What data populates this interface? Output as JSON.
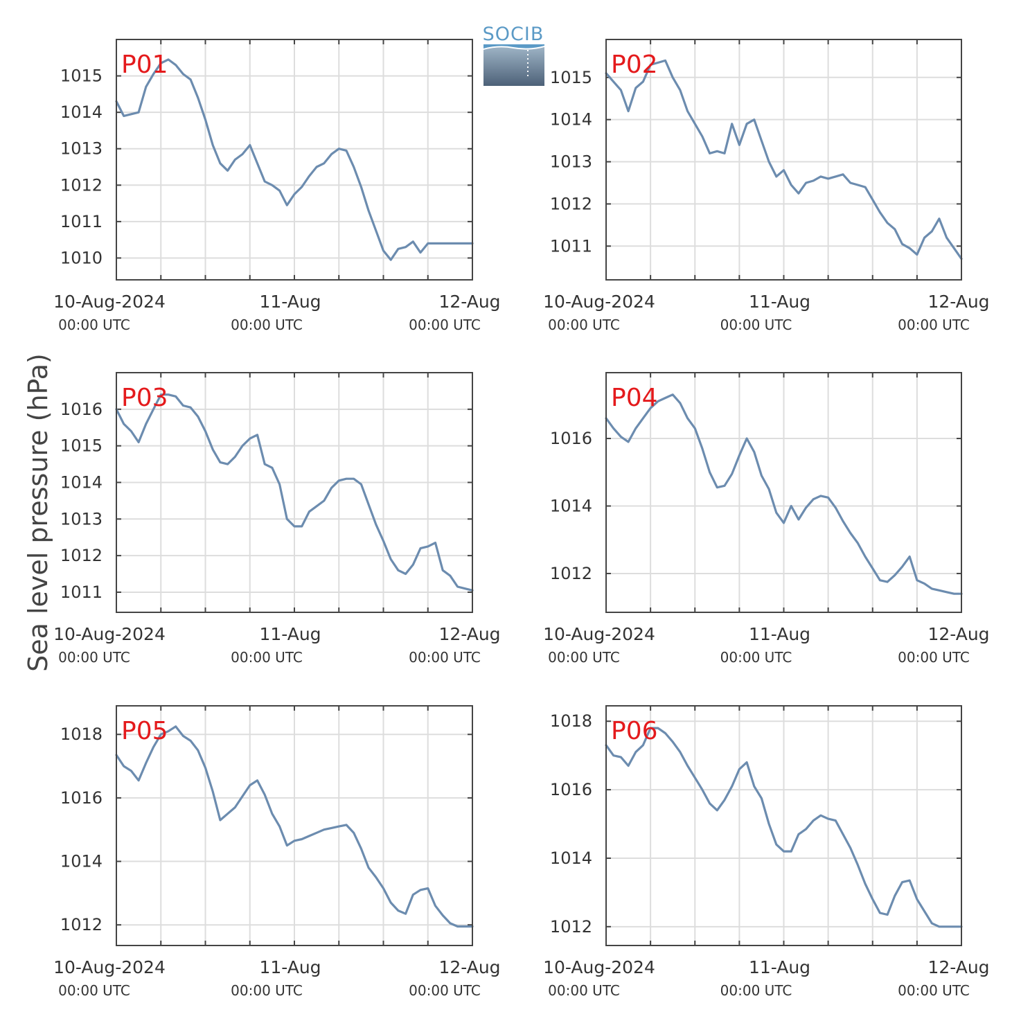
{
  "figure": {
    "ylabel": "Sea level pressure (hPa)",
    "logo_text": "SOCIB",
    "line_color": "#6c8caf",
    "label_color": "#e41a1c",
    "x_ticks": [
      {
        "date": "10-Aug-2024",
        "time": "00:00 UTC"
      },
      {
        "date": "11-Aug",
        "time": "00:00 UTC"
      },
      {
        "date": "12-Aug",
        "time": "00:00 UTC"
      }
    ]
  },
  "chart_data": [
    {
      "type": "line",
      "label": "P01",
      "xlim": [
        0,
        48
      ],
      "ylim": [
        1009.4,
        1016.0
      ],
      "yticks": [
        1010,
        1011,
        1012,
        1013,
        1014,
        1015
      ],
      "ylabel": "Sea level pressure (hPa)",
      "x": [
        0,
        1,
        2,
        3,
        4,
        5,
        6,
        7,
        8,
        9,
        10,
        11,
        12,
        13,
        14,
        15,
        16,
        17,
        18,
        19,
        20,
        21,
        22,
        23,
        24,
        25,
        26,
        27,
        28,
        29,
        30,
        31,
        32,
        33,
        34,
        35,
        36,
        37,
        38,
        39,
        40,
        41,
        42,
        43,
        44,
        45,
        46,
        47,
        48
      ],
      "values": [
        1014.3,
        1013.9,
        1013.95,
        1014.0,
        1014.7,
        1015.05,
        1015.35,
        1015.45,
        1015.3,
        1015.05,
        1014.9,
        1014.4,
        1013.8,
        1013.1,
        1012.6,
        1012.4,
        1012.7,
        1012.85,
        1013.1,
        1012.6,
        1012.1,
        1012.0,
        1011.85,
        1011.45,
        1011.75,
        1011.95,
        1012.25,
        1012.5,
        1012.6,
        1012.85,
        1013.0,
        1012.95,
        1012.5,
        1011.95,
        1011.3,
        1010.75,
        1010.2,
        1009.95,
        1010.25,
        1010.3,
        1010.45,
        1010.15,
        1010.4,
        1010.4,
        1010.4,
        1010.4,
        1010.4,
        1010.4,
        1010.4
      ]
    },
    {
      "type": "line",
      "label": "P02",
      "xlim": [
        0,
        48
      ],
      "ylim": [
        1010.2,
        1015.9
      ],
      "yticks": [
        1011,
        1012,
        1013,
        1014,
        1015
      ],
      "ylabel": "Sea level pressure (hPa)",
      "x": [
        0,
        1,
        2,
        3,
        4,
        5,
        6,
        7,
        8,
        9,
        10,
        11,
        12,
        13,
        14,
        15,
        16,
        17,
        18,
        19,
        20,
        21,
        22,
        23,
        24,
        25,
        26,
        27,
        28,
        29,
        30,
        31,
        32,
        33,
        34,
        35,
        36,
        37,
        38,
        39,
        40,
        41,
        42,
        43,
        44,
        45,
        46,
        47,
        48
      ],
      "values": [
        1015.1,
        1014.9,
        1014.7,
        1014.2,
        1014.75,
        1014.9,
        1015.3,
        1015.35,
        1015.4,
        1015.0,
        1014.7,
        1014.2,
        1013.9,
        1013.6,
        1013.2,
        1013.25,
        1013.2,
        1013.9,
        1013.4,
        1013.9,
        1014.0,
        1013.5,
        1013.0,
        1012.65,
        1012.8,
        1012.45,
        1012.25,
        1012.5,
        1012.55,
        1012.65,
        1012.6,
        1012.65,
        1012.7,
        1012.5,
        1012.45,
        1012.4,
        1012.1,
        1011.8,
        1011.55,
        1011.4,
        1011.05,
        1010.95,
        1010.8,
        1011.2,
        1011.35,
        1011.65,
        1011.2,
        1010.95,
        1010.7
      ]
    },
    {
      "type": "line",
      "label": "P03",
      "xlim": [
        0,
        48
      ],
      "ylim": [
        1010.45,
        1017.0
      ],
      "yticks": [
        1011,
        1012,
        1013,
        1014,
        1015,
        1016
      ],
      "ylabel": "Sea level pressure (hPa)",
      "x": [
        0,
        1,
        2,
        3,
        4,
        5,
        6,
        7,
        8,
        9,
        10,
        11,
        12,
        13,
        14,
        15,
        16,
        17,
        18,
        19,
        20,
        21,
        22,
        23,
        24,
        25,
        26,
        27,
        28,
        29,
        30,
        31,
        32,
        33,
        34,
        35,
        36,
        37,
        38,
        39,
        40,
        41,
        42,
        43,
        44,
        45,
        46,
        47,
        48
      ],
      "values": [
        1016.0,
        1015.6,
        1015.4,
        1015.1,
        1015.6,
        1016.0,
        1016.4,
        1016.4,
        1016.35,
        1016.1,
        1016.05,
        1015.8,
        1015.4,
        1014.9,
        1014.55,
        1014.5,
        1014.7,
        1015.0,
        1015.2,
        1015.3,
        1014.5,
        1014.4,
        1013.95,
        1013.0,
        1012.8,
        1012.8,
        1013.2,
        1013.35,
        1013.5,
        1013.85,
        1014.05,
        1014.1,
        1014.1,
        1013.95,
        1013.4,
        1012.85,
        1012.4,
        1011.9,
        1011.6,
        1011.5,
        1011.75,
        1012.2,
        1012.25,
        1012.35,
        1011.6,
        1011.45,
        1011.15,
        1011.1,
        1011.05
      ]
    },
    {
      "type": "line",
      "label": "P04",
      "xlim": [
        0,
        48
      ],
      "ylim": [
        1010.85,
        1017.95
      ],
      "yticks": [
        1012,
        1014,
        1016
      ],
      "ylabel": "Sea level pressure (hPa)",
      "x": [
        0,
        1,
        2,
        3,
        4,
        5,
        6,
        7,
        8,
        9,
        10,
        11,
        12,
        13,
        14,
        15,
        16,
        17,
        18,
        19,
        20,
        21,
        22,
        23,
        24,
        25,
        26,
        27,
        28,
        29,
        30,
        31,
        32,
        33,
        34,
        35,
        36,
        37,
        38,
        39,
        40,
        41,
        42,
        43,
        44,
        45,
        46,
        47,
        48
      ],
      "values": [
        1016.6,
        1016.3,
        1016.05,
        1015.9,
        1016.3,
        1016.6,
        1016.9,
        1017.1,
        1017.2,
        1017.3,
        1017.05,
        1016.6,
        1016.3,
        1015.7,
        1015.0,
        1014.55,
        1014.6,
        1014.95,
        1015.5,
        1016.0,
        1015.6,
        1014.9,
        1014.5,
        1013.8,
        1013.5,
        1014.0,
        1013.6,
        1013.95,
        1014.2,
        1014.3,
        1014.25,
        1013.95,
        1013.55,
        1013.2,
        1012.9,
        1012.5,
        1012.15,
        1011.8,
        1011.75,
        1011.95,
        1012.2,
        1012.5,
        1011.8,
        1011.7,
        1011.55,
        1011.5,
        1011.45,
        1011.4,
        1011.4
      ]
    },
    {
      "type": "line",
      "label": "P05",
      "xlim": [
        0,
        48
      ],
      "ylim": [
        1011.35,
        1018.9
      ],
      "yticks": [
        1012,
        1014,
        1016,
        1018
      ],
      "ylabel": "Sea level pressure (hPa)",
      "x": [
        0,
        1,
        2,
        3,
        4,
        5,
        6,
        7,
        8,
        9,
        10,
        11,
        12,
        13,
        14,
        15,
        16,
        17,
        18,
        19,
        20,
        21,
        22,
        23,
        24,
        25,
        26,
        27,
        28,
        29,
        30,
        31,
        32,
        33,
        34,
        35,
        36,
        37,
        38,
        39,
        40,
        41,
        42,
        43,
        44,
        45,
        46,
        47,
        48
      ],
      "values": [
        1017.35,
        1017.0,
        1016.85,
        1016.55,
        1017.1,
        1017.6,
        1018.0,
        1018.1,
        1018.25,
        1017.95,
        1017.8,
        1017.5,
        1016.95,
        1016.2,
        1015.3,
        1015.5,
        1015.7,
        1016.05,
        1016.4,
        1016.55,
        1016.1,
        1015.5,
        1015.1,
        1014.5,
        1014.65,
        1014.7,
        1014.8,
        1014.9,
        1015.0,
        1015.05,
        1015.1,
        1015.15,
        1014.9,
        1014.4,
        1013.8,
        1013.5,
        1013.15,
        1012.7,
        1012.45,
        1012.35,
        1012.95,
        1013.1,
        1013.15,
        1012.6,
        1012.3,
        1012.05,
        1011.95,
        1011.95,
        1011.95
      ]
    },
    {
      "type": "line",
      "label": "P06",
      "xlim": [
        0,
        48
      ],
      "ylim": [
        1011.45,
        1018.45
      ],
      "yticks": [
        1012,
        1014,
        1016,
        1018
      ],
      "ylabel": "Sea level pressure (hPa)",
      "x": [
        0,
        1,
        2,
        3,
        4,
        5,
        6,
        7,
        8,
        9,
        10,
        11,
        12,
        13,
        14,
        15,
        16,
        17,
        18,
        19,
        20,
        21,
        22,
        23,
        24,
        25,
        26,
        27,
        28,
        29,
        30,
        31,
        32,
        33,
        34,
        35,
        36,
        37,
        38,
        39,
        40,
        41,
        42,
        43,
        44,
        45,
        46,
        47,
        48
      ],
      "values": [
        1017.3,
        1017.0,
        1016.95,
        1016.7,
        1017.1,
        1017.3,
        1017.8,
        1017.8,
        1017.65,
        1017.4,
        1017.1,
        1016.7,
        1016.35,
        1016.0,
        1015.6,
        1015.4,
        1015.7,
        1016.1,
        1016.6,
        1016.8,
        1016.1,
        1015.75,
        1015.0,
        1014.4,
        1014.2,
        1014.2,
        1014.7,
        1014.85,
        1015.1,
        1015.25,
        1015.15,
        1015.1,
        1014.7,
        1014.3,
        1013.8,
        1013.25,
        1012.8,
        1012.4,
        1012.35,
        1012.9,
        1013.3,
        1013.35,
        1012.8,
        1012.45,
        1012.1,
        1012.0,
        1012.0,
        1012.0,
        1012.0
      ]
    }
  ]
}
